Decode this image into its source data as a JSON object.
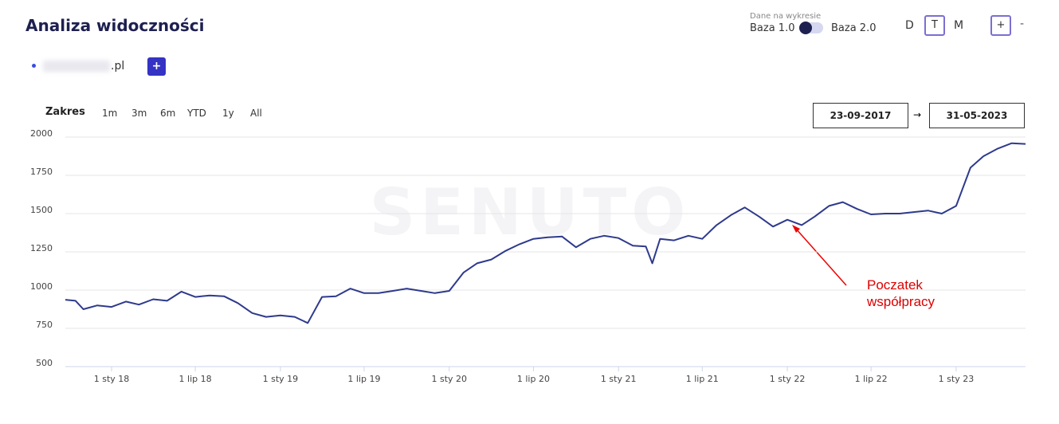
{
  "header": {
    "title": "Analiza widoczności",
    "data_label": "Dane na wykresie",
    "base1": "Baza 1.0",
    "base2": "Baza 2.0",
    "periods": [
      "D",
      "T",
      "M"
    ],
    "zoom_in": "+",
    "zoom_out": "-",
    "add": "+"
  },
  "range": {
    "label": "Zakres",
    "options": [
      "1m",
      "3m",
      "6m",
      "YTD",
      "1y",
      "All"
    ],
    "from": "23-09-2017",
    "arrow": "→",
    "to": "31-05-2023"
  },
  "chart_data": {
    "type": "line",
    "watermark": "SENUTO",
    "annotation": "Poczatek współpracy",
    "x": [
      "2017-09-23",
      "2017-10-15",
      "2017-11-01",
      "2017-12-01",
      "2018-01-01",
      "2018-02-01",
      "2018-03-01",
      "2018-04-01",
      "2018-05-01",
      "2018-06-01",
      "2018-07-01",
      "2018-08-01",
      "2018-09-01",
      "2018-10-01",
      "2018-11-01",
      "2018-12-01",
      "2019-01-01",
      "2019-02-01",
      "2019-03-01",
      "2019-04-01",
      "2019-05-01",
      "2019-06-01",
      "2019-07-01",
      "2019-08-01",
      "2019-09-01",
      "2019-10-01",
      "2019-11-01",
      "2019-12-01",
      "2020-01-01",
      "2020-02-01",
      "2020-03-01",
      "2020-04-01",
      "2020-05-01",
      "2020-06-01",
      "2020-07-01",
      "2020-08-01",
      "2020-09-01",
      "2020-10-01",
      "2020-11-01",
      "2020-12-01",
      "2021-01-01",
      "2021-02-01",
      "2021-03-01",
      "2021-03-15",
      "2021-04-01",
      "2021-05-01",
      "2021-06-01",
      "2021-07-01",
      "2021-08-01",
      "2021-09-01",
      "2021-10-01",
      "2021-11-01",
      "2021-12-01",
      "2022-01-01",
      "2022-02-01",
      "2022-03-01",
      "2022-04-01",
      "2022-05-01",
      "2022-06-01",
      "2022-07-01",
      "2022-08-01",
      "2022-09-01",
      "2022-10-01",
      "2022-11-01",
      "2022-12-01",
      "2023-01-01",
      "2023-02-01",
      "2023-03-01",
      "2023-04-01",
      "2023-05-01",
      "2023-05-31"
    ],
    "series": [
      {
        "name": ".pl",
        "color": "#2e3a8c",
        "values": [
          937,
          930,
          875,
          900,
          890,
          925,
          905,
          940,
          930,
          990,
          955,
          965,
          960,
          915,
          850,
          825,
          835,
          825,
          785,
          955,
          960,
          1010,
          980,
          980,
          995,
          1010,
          995,
          980,
          995,
          1115,
          1175,
          1200,
          1255,
          1300,
          1335,
          1345,
          1350,
          1280,
          1335,
          1355,
          1340,
          1290,
          1285,
          1175,
          1335,
          1325,
          1355,
          1335,
          1425,
          1490,
          1540,
          1480,
          1415,
          1460,
          1425,
          1480,
          1550,
          1575,
          1530,
          1495,
          1500,
          1500,
          1510,
          1520,
          1500,
          1550,
          1800,
          1875,
          1925,
          1960,
          1955
        ]
      }
    ],
    "xlim": [
      "2017-09-23",
      "2023-05-31"
    ],
    "xticks": [
      {
        "value": "2018-01-01",
        "label": "1 sty 18"
      },
      {
        "value": "2018-07-01",
        "label": "1 lip 18"
      },
      {
        "value": "2019-01-01",
        "label": "1 sty 19"
      },
      {
        "value": "2019-07-01",
        "label": "1 lip 19"
      },
      {
        "value": "2020-01-01",
        "label": "1 sty 20"
      },
      {
        "value": "2020-07-01",
        "label": "1 lip 20"
      },
      {
        "value": "2021-01-01",
        "label": "1 sty 21"
      },
      {
        "value": "2021-07-01",
        "label": "1 lip 21"
      },
      {
        "value": "2022-01-01",
        "label": "1 sty 22"
      },
      {
        "value": "2022-07-01",
        "label": "1 lip 22"
      },
      {
        "value": "2023-01-01",
        "label": "1 sty 23"
      }
    ],
    "ylim": [
      500,
      2000
    ],
    "yticks": [
      500,
      750,
      1000,
      1250,
      1500,
      1750,
      2000
    ],
    "grid": true
  }
}
